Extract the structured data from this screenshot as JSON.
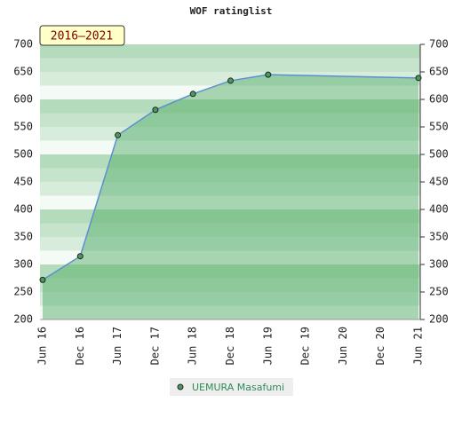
{
  "chart_data": {
    "type": "line",
    "title": "WOF ratinglist",
    "badge": "2016–2021",
    "categories": [
      "Jun 16",
      "Dec 16",
      "Jun 17",
      "Dec 17",
      "Jun 18",
      "Dec 18",
      "Jun 19",
      "Dec 19",
      "Jun 20",
      "Dec 20",
      "Jun 21"
    ],
    "x": [
      "Jun 16",
      "Dec 16",
      "Jun 17",
      "Dec 17",
      "Jun 18",
      "Dec 18",
      "Jun 19",
      "Jun 21"
    ],
    "series": [
      {
        "name": "UEMURA Masafumi",
        "color": "#4a9a5a",
        "values": [
          272,
          315,
          535,
          581,
          610,
          634,
          645,
          639
        ]
      }
    ],
    "ylim": [
      200,
      700
    ],
    "yticks": [
      200,
      250,
      300,
      350,
      400,
      450,
      500,
      550,
      600,
      650,
      700
    ],
    "grid": true
  }
}
